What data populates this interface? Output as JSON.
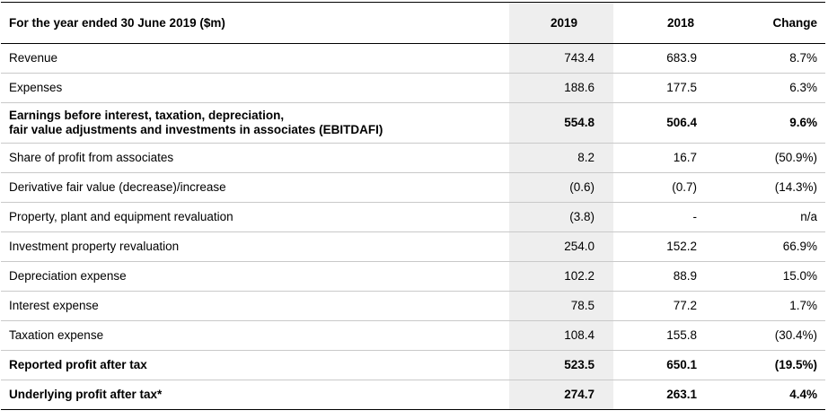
{
  "header": {
    "label": "For the year ended 30 June 2019 ($m)",
    "col_2019": "2019",
    "col_2018": "2018",
    "col_change": "Change"
  },
  "rows": [
    {
      "label": "Revenue",
      "v2019": "743.4",
      "v2018": "683.9",
      "change": "8.7%"
    },
    {
      "label": "Expenses",
      "v2019": "188.6",
      "v2018": "177.5",
      "change": "6.3%"
    },
    {
      "label_line1": "Earnings before interest, taxation, depreciation,",
      "label_line2": "fair value adjustments and investments in associates (EBITDAFI)",
      "v2019": "554.8",
      "v2018": "506.4",
      "change": "9.6%"
    },
    {
      "label": "Share of profit from associates",
      "v2019": "8.2",
      "v2018": "16.7",
      "change": "(50.9%)"
    },
    {
      "label": "Derivative fair value (decrease)/increase",
      "v2019": "(0.6)",
      "v2018": "(0.7)",
      "change": "(14.3%)"
    },
    {
      "label": "Property, plant and equipment revaluation",
      "v2019": "(3.8)",
      "v2018": "-",
      "change": "n/a"
    },
    {
      "label": "Investment property revaluation",
      "v2019": "254.0",
      "v2018": "152.2",
      "change": "66.9%"
    },
    {
      "label": "Depreciation expense",
      "v2019": "102.2",
      "v2018": "88.9",
      "change": "15.0%"
    },
    {
      "label": "Interest expense",
      "v2019": "78.5",
      "v2018": "77.2",
      "change": "1.7%"
    },
    {
      "label": "Taxation expense",
      "v2019": "108.4",
      "v2018": "155.8",
      "change": "(30.4%)"
    },
    {
      "label": "Reported profit after tax",
      "v2019": "523.5",
      "v2018": "650.1",
      "change": "(19.5%)"
    },
    {
      "label": "Underlying profit after tax*",
      "v2019": "274.7",
      "v2018": "263.1",
      "change": "4.4%"
    }
  ]
}
